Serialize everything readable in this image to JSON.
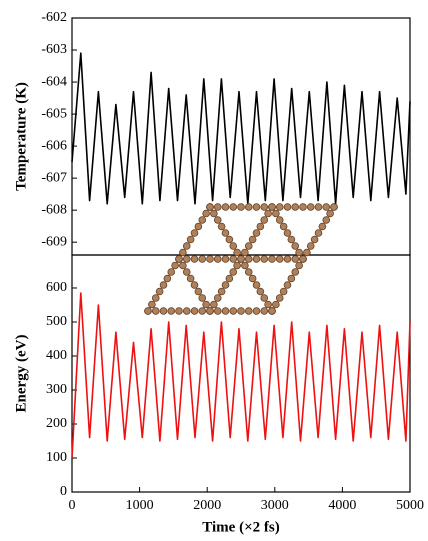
{
  "chart_data": [
    {
      "type": "line",
      "ylabel": "Temperature (K)",
      "xlim": [
        0,
        5000
      ],
      "ylim": [
        -609.4,
        -602
      ],
      "yticks": [
        -602,
        -603,
        -604,
        -605,
        -606,
        -607,
        -608,
        -609
      ],
      "x": [
        0,
        130,
        260,
        390,
        520,
        650,
        780,
        910,
        1040,
        1170,
        1300,
        1430,
        1560,
        1690,
        1820,
        1950,
        2080,
        2210,
        2340,
        2470,
        2600,
        2730,
        2860,
        2990,
        3120,
        3250,
        3380,
        3510,
        3640,
        3770,
        3900,
        4030,
        4160,
        4290,
        4420,
        4550,
        4680,
        4810,
        4940,
        5000
      ],
      "series": [
        {
          "color": "#000000",
          "values": [
            -606.5,
            -603.1,
            -607.7,
            -604.3,
            -607.8,
            -604.7,
            -607.6,
            -604.3,
            -607.8,
            -603.7,
            -607.7,
            -604.2,
            -607.7,
            -604.4,
            -607.8,
            -603.9,
            -607.7,
            -603.9,
            -607.6,
            -604.3,
            -607.8,
            -604.3,
            -607.7,
            -603.9,
            -607.7,
            -604.2,
            -607.6,
            -604.3,
            -607.7,
            -604.0,
            -607.8,
            -604.1,
            -607.6,
            -604.3,
            -607.7,
            -604.3,
            -607.6,
            -604.5,
            -607.5,
            -604.6
          ]
        }
      ]
    },
    {
      "type": "line",
      "ylabel": "Energy (eV)",
      "xlabel": "Time (×2 fs)",
      "xlim": [
        0,
        5000
      ],
      "xticks": [
        0,
        1000,
        2000,
        3000,
        4000,
        5000
      ],
      "ylim": [
        0,
        697
      ],
      "yticks": [
        0,
        100,
        200,
        300,
        400,
        500,
        600
      ],
      "x": [
        0,
        130,
        260,
        390,
        520,
        650,
        780,
        910,
        1040,
        1170,
        1300,
        1430,
        1560,
        1690,
        1820,
        1950,
        2080,
        2210,
        2340,
        2470,
        2600,
        2730,
        2860,
        2990,
        3120,
        3250,
        3380,
        3510,
        3640,
        3770,
        3900,
        4030,
        4160,
        4290,
        4420,
        4550,
        4680,
        4810,
        4940,
        5000
      ],
      "series": [
        {
          "color": "#ee1111",
          "values": [
            100,
            585,
            160,
            550,
            150,
            470,
            155,
            440,
            160,
            480,
            150,
            500,
            155,
            490,
            160,
            470,
            150,
            500,
            160,
            480,
            150,
            470,
            155,
            490,
            160,
            500,
            150,
            470,
            160,
            490,
            155,
            480,
            150,
            470,
            160,
            490,
            155,
            470,
            150,
            500
          ]
        }
      ]
    }
  ]
}
